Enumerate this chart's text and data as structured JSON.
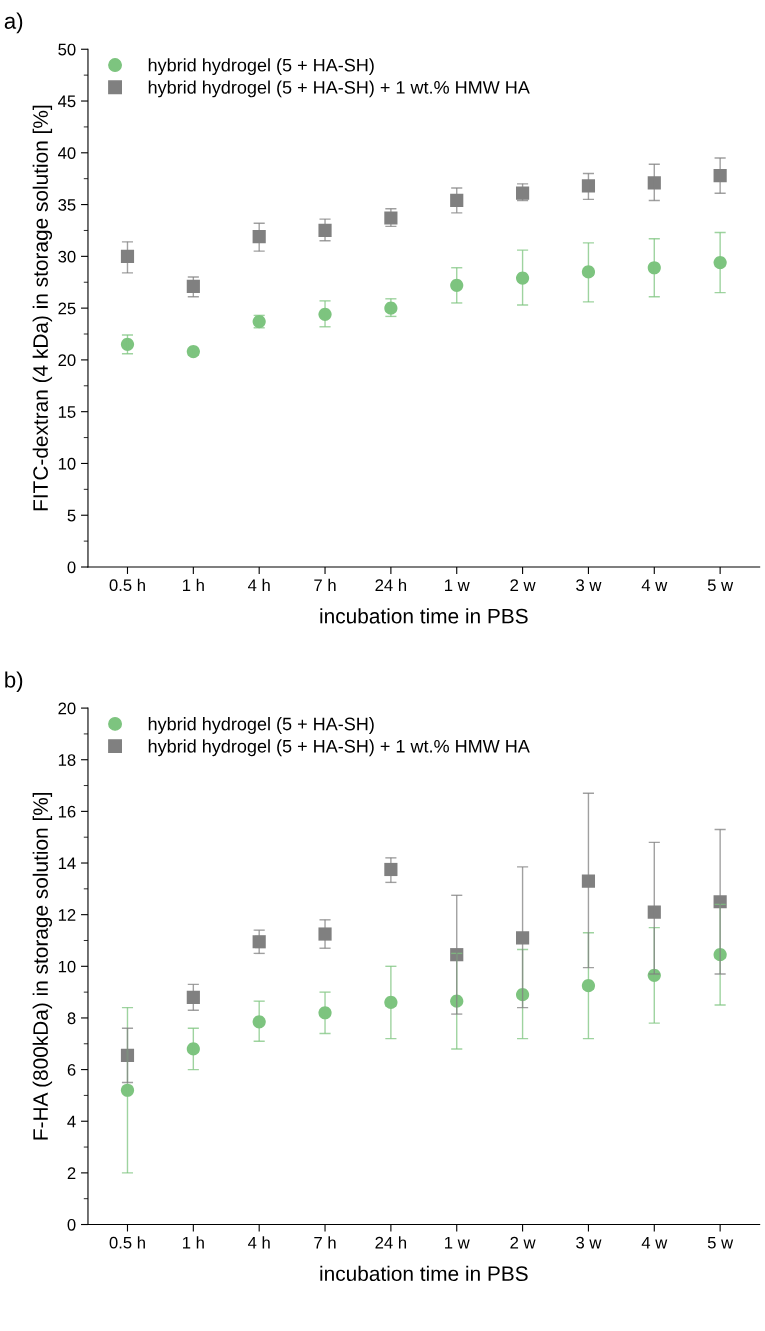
{
  "chart_data": [
    {
      "type": "scatter",
      "title": "a)",
      "xlabel": "incubation time in PBS",
      "ylabel": "FITC-dextran (4 kDa) in storage solution [%]",
      "categories": [
        "0.5 h",
        "1 h",
        "4 h",
        "7 h",
        "24 h",
        "1 w",
        "2 w",
        "3 w",
        "4 w",
        "5 w"
      ],
      "series": [
        {
          "name": "hybrid hydrogel (5 + HA-SH)",
          "color": "#7dc47f",
          "marker": "circle",
          "values": [
            21.5,
            20.8,
            23.7,
            24.4,
            25.0,
            27.2,
            27.9,
            28.5,
            28.9,
            29.4
          ],
          "errors": [
            [
              20.6,
              22.4
            ],
            [
              20.5,
              21.1
            ],
            [
              23.1,
              24.3
            ],
            [
              23.2,
              25.7
            ],
            [
              24.2,
              25.9
            ],
            [
              25.5,
              28.9
            ],
            [
              25.3,
              30.6
            ],
            [
              25.6,
              31.3
            ],
            [
              26.1,
              31.7
            ],
            [
              26.5,
              32.3
            ]
          ]
        },
        {
          "name": "hybrid hydrogel (5 + HA-SH) + 1 wt.% HMW HA",
          "color": "#808080",
          "marker": "square",
          "values": [
            30.0,
            27.1,
            31.9,
            32.5,
            33.7,
            35.4,
            36.1,
            36.8,
            37.1,
            37.8
          ],
          "errors": [
            [
              28.4,
              31.4
            ],
            [
              26.1,
              28.0
            ],
            [
              30.5,
              33.2
            ],
            [
              31.5,
              33.6
            ],
            [
              32.9,
              34.6
            ],
            [
              34.2,
              36.6
            ],
            [
              35.4,
              37.0
            ],
            [
              35.5,
              38.0
            ],
            [
              35.4,
              38.9
            ],
            [
              36.1,
              39.5
            ]
          ]
        }
      ],
      "ylim": [
        0,
        50
      ],
      "yticks": [
        0,
        5,
        10,
        15,
        20,
        25,
        30,
        35,
        40,
        45,
        50
      ],
      "grid": false,
      "legend": "top left"
    },
    {
      "type": "scatter",
      "title": "b)",
      "xlabel": "incubation time in PBS",
      "ylabel": "F-HA (800kDa) in storage solution [%]",
      "categories": [
        "0.5 h",
        "1 h",
        "4 h",
        "7 h",
        "24 h",
        "1 w",
        "2 w",
        "3 w",
        "4 w",
        "5 w"
      ],
      "series": [
        {
          "name": "hybrid hydrogel (5 + HA-SH)",
          "color": "#7dc47f",
          "marker": "circle",
          "values": [
            5.2,
            6.8,
            7.85,
            8.2,
            8.6,
            8.65,
            8.9,
            9.25,
            9.65,
            10.45
          ],
          "errors": [
            [
              2.0,
              8.4
            ],
            [
              6.0,
              7.6
            ],
            [
              7.1,
              8.65
            ],
            [
              7.4,
              9.0
            ],
            [
              7.2,
              10.0
            ],
            [
              6.8,
              10.5
            ],
            [
              7.2,
              10.65
            ],
            [
              7.2,
              11.3
            ],
            [
              7.8,
              11.5
            ],
            [
              8.5,
              12.4
            ]
          ]
        },
        {
          "name": "hybrid hydrogel (5 + HA-SH) + 1 wt.% HMW HA",
          "color": "#808080",
          "marker": "square",
          "values": [
            6.55,
            8.8,
            10.95,
            11.25,
            13.75,
            10.45,
            11.1,
            13.3,
            12.1,
            12.5
          ],
          "errors": [
            [
              5.5,
              7.6
            ],
            [
              8.3,
              9.3
            ],
            [
              10.5,
              11.4
            ],
            [
              10.7,
              11.8
            ],
            [
              13.25,
              14.2
            ],
            [
              8.15,
              12.75
            ],
            [
              8.4,
              13.85
            ],
            [
              9.95,
              16.7
            ],
            [
              9.7,
              14.8
            ],
            [
              9.7,
              15.3
            ]
          ]
        }
      ],
      "ylim": [
        0,
        20
      ],
      "yticks": [
        0,
        2,
        4,
        6,
        8,
        10,
        12,
        14,
        16,
        18,
        20
      ],
      "grid": false,
      "legend": "top left"
    }
  ]
}
